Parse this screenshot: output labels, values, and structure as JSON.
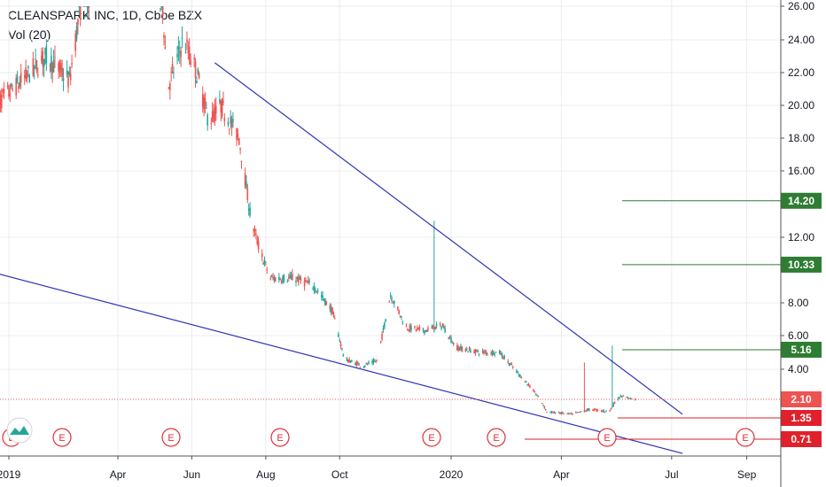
{
  "header": {
    "title": "CLEANSPARK INC, 1D, Cboe BZX",
    "subtitle": "Vol (20)"
  },
  "colors": {
    "up": "#26a69a",
    "down": "#ef5350",
    "trendline": "#2f35b3",
    "target": "#2e7d32",
    "stop": "#e0202a",
    "grid": "#e9ecf0"
  },
  "chart_data": {
    "type": "candlestick",
    "title": "CLEANSPARK INC, 1D, Cboe BZX",
    "y_ticks": [
      "26.00",
      "24.00",
      "22.00",
      "20.00",
      "18.00",
      "16.00",
      "12.00",
      "8.00",
      "6.00",
      "4.00"
    ],
    "x_ticks": [
      "2019",
      "Apr",
      "Jun",
      "Aug",
      "Oct",
      "2020",
      "Apr",
      "Jul",
      "Sep"
    ],
    "last_price": "2.10",
    "price_tags": [
      {
        "label": "14.20",
        "kind": "target"
      },
      {
        "label": "10.33",
        "kind": "target"
      },
      {
        "label": "5.16",
        "kind": "target"
      },
      {
        "label": "2.10",
        "kind": "last"
      },
      {
        "label": "1.35",
        "kind": "stop"
      },
      {
        "label": "0.71",
        "kind": "stop"
      }
    ],
    "earnings_label": "E",
    "earnings_count": 8,
    "trendlines": [
      {
        "from": [
          "2019-06-20",
          22.6
        ],
        "to": [
          "2020-07-10",
          1.5
        ]
      },
      {
        "from": [
          "2018-12-01",
          10.2
        ],
        "to": [
          "2020-07-10",
          0.3
        ]
      }
    ]
  }
}
